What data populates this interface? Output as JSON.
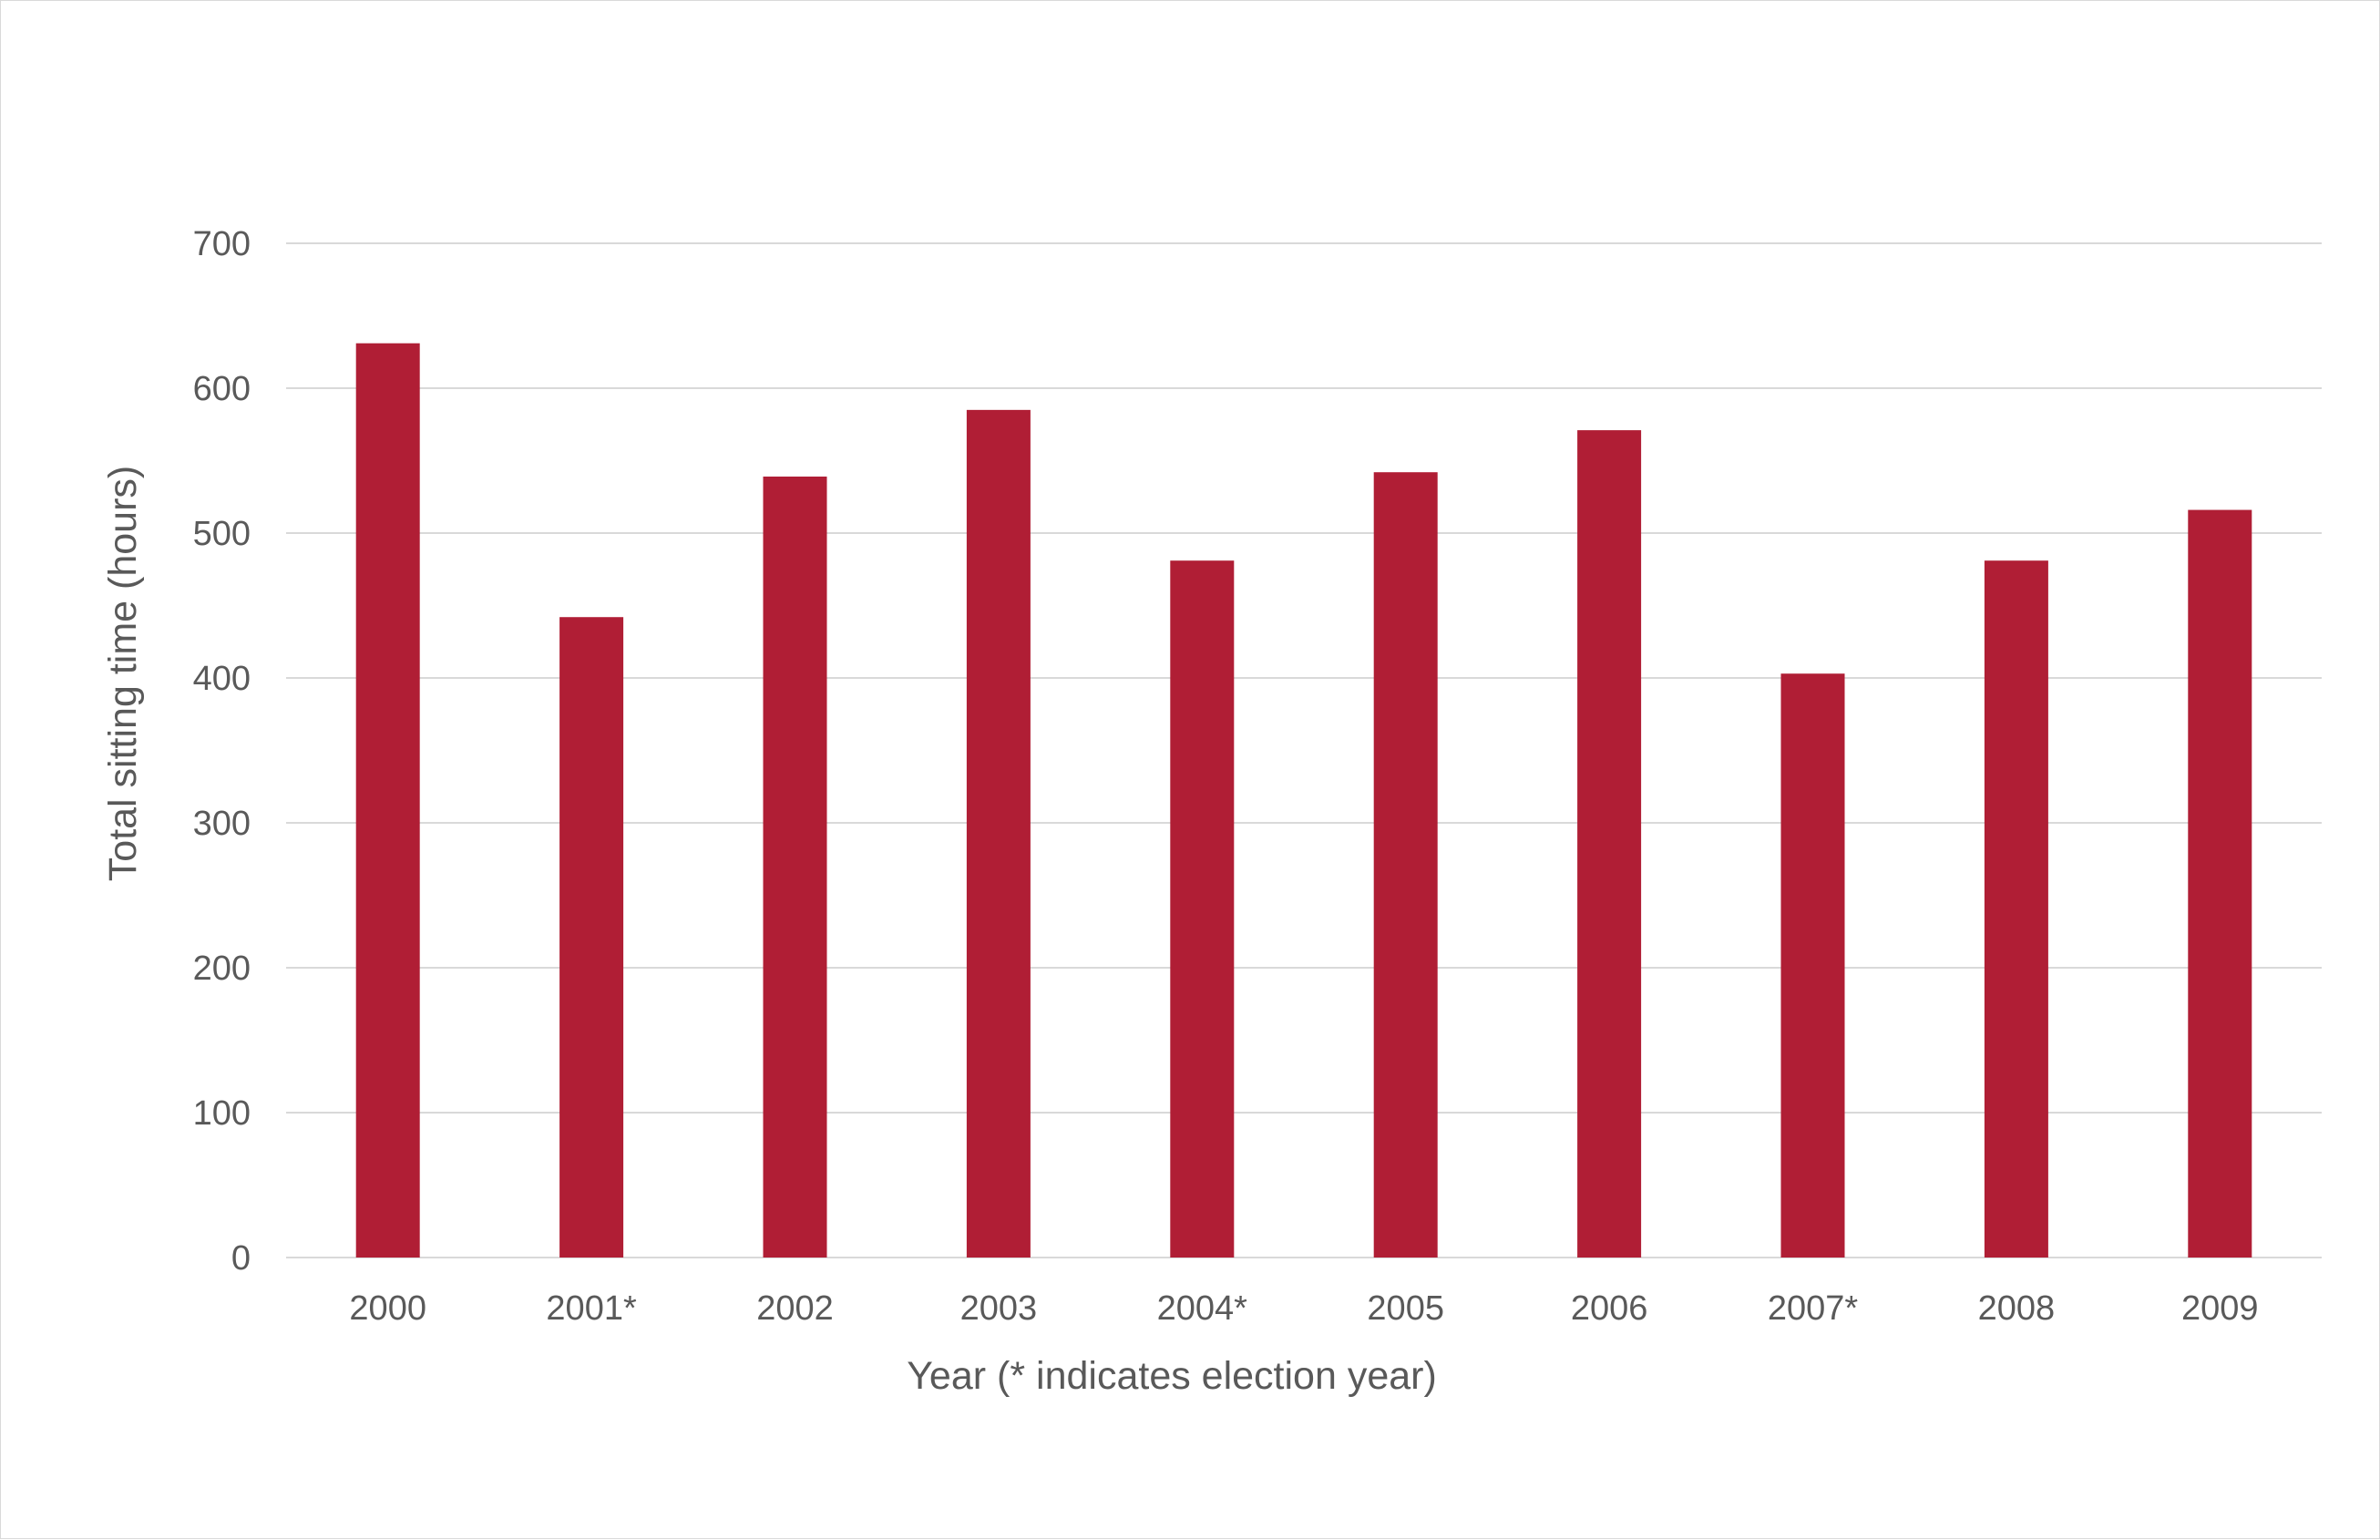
{
  "chart_data": {
    "type": "bar",
    "title": "",
    "xlabel": "Year (* indicates election year)",
    "ylabel": "Total sitting time (hours)",
    "categories": [
      "2000",
      "2001*",
      "2002",
      "2003",
      "2004*",
      "2005",
      "2006",
      "2007*",
      "2008",
      "2009"
    ],
    "series": [
      {
        "name": "Total sitting time",
        "values": [
          631,
          442,
          539,
          585,
          481,
          542,
          571,
          403,
          481,
          516
        ]
      }
    ],
    "ylim": [
      0,
      700
    ],
    "yticks": [
      0,
      100,
      200,
      300,
      400,
      500,
      600,
      700
    ],
    "grid": true,
    "legend": "none",
    "bar_color": "#b01e35"
  }
}
